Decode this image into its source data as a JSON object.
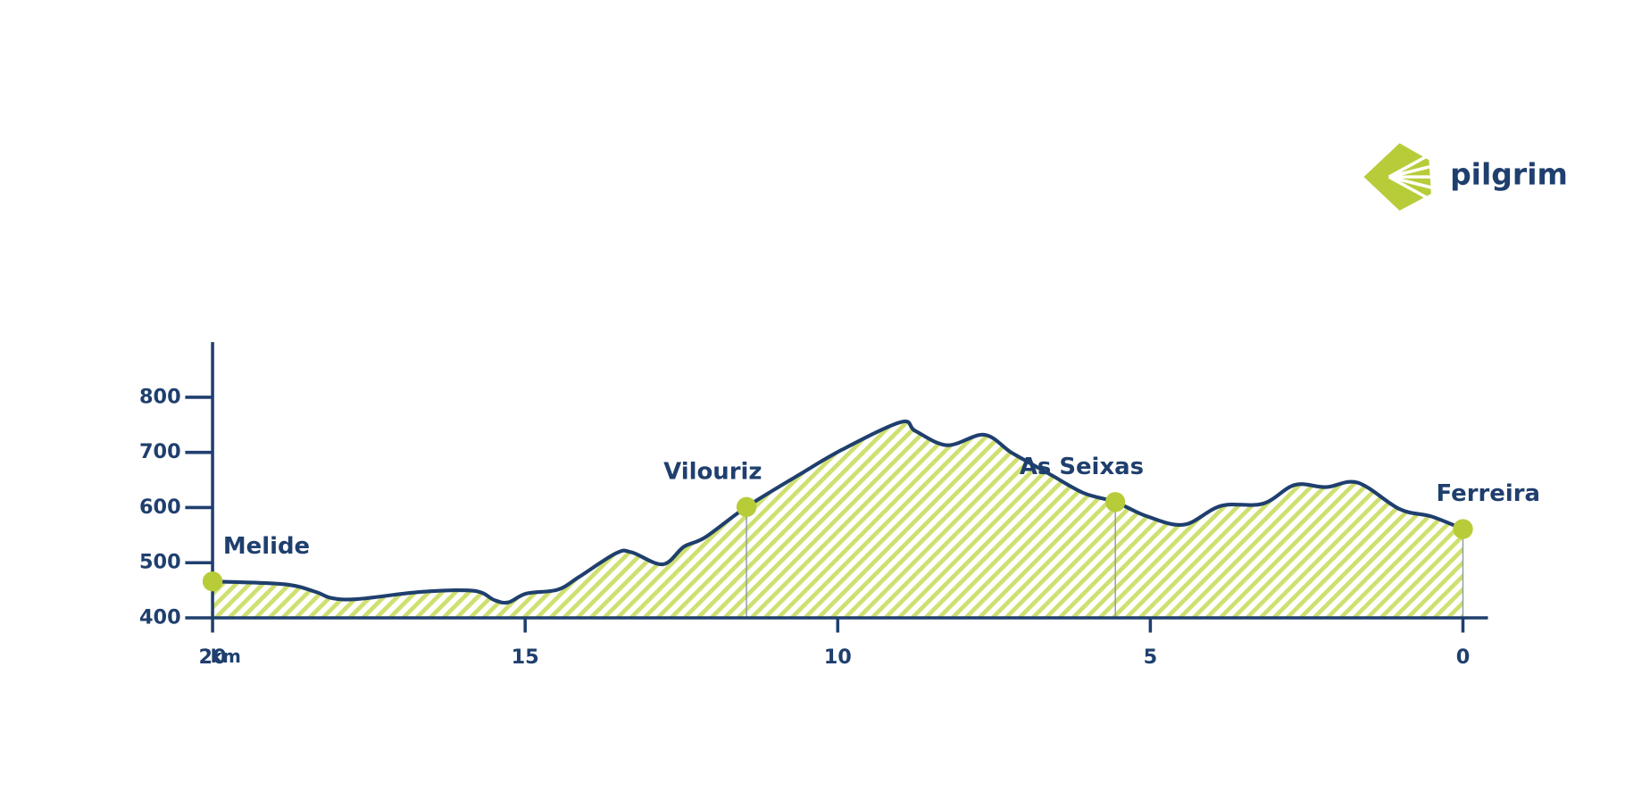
{
  "logo": {
    "text": "pilgrim"
  },
  "chart_data": {
    "type": "area",
    "x_label": "km",
    "x": [
      20,
      18.86,
      18.35,
      18.1,
      17.68,
      16.67,
      15.82,
      15.49,
      15.27,
      14.98,
      14.48,
      14.14,
      13.55,
      13.3,
      12.8,
      12.46,
      12.12,
      11.46,
      10.61,
      9.93,
      8.99,
      8.76,
      8.25,
      7.66,
      7.24,
      6.9,
      6.57,
      6.06,
      5.56,
      5.05,
      4.46,
      3.87,
      3.2,
      2.69,
      2.19,
      1.68,
      1.01,
      0.51,
      0
    ],
    "values": [
      466,
      461,
      447,
      436,
      434,
      447,
      449,
      432,
      428,
      444,
      451,
      474,
      517,
      519,
      497,
      529,
      546,
      601,
      660,
      705,
      755,
      739,
      713,
      732,
      701,
      679,
      658,
      626,
      610,
      584,
      569,
      603,
      607,
      641,
      637,
      645,
      597,
      584,
      561
    ],
    "xlim": [
      20,
      -0.4
    ],
    "ylim": [
      400,
      900
    ],
    "xticks": [
      20,
      15,
      10,
      5,
      0
    ],
    "yticks": [
      400,
      500,
      600,
      700,
      800
    ],
    "color": "#1f3f6e",
    "fill_color": "#cfe070",
    "marker_color": "#b8cc3a",
    "places": [
      {
        "name": "Melide",
        "km": 20,
        "elevation": 466
      },
      {
        "name": "Vilouriz",
        "km": 11.46,
        "elevation": 601
      },
      {
        "name": "As Seixas",
        "km": 5.56,
        "elevation": 610
      },
      {
        "name": "Ferreira",
        "km": 0,
        "elevation": 561
      }
    ]
  }
}
